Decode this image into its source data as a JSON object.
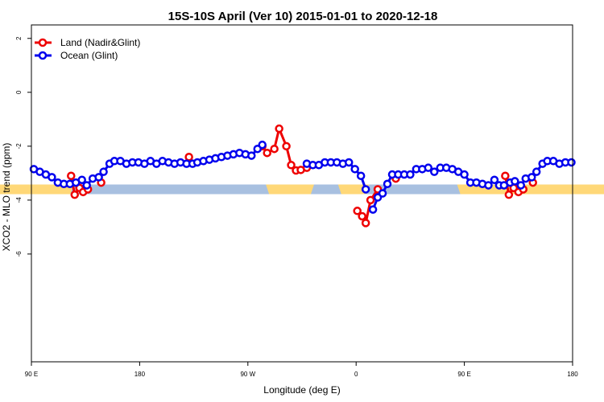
{
  "chart_data": {
    "type": "line",
    "title": "15S-10S April (Ver 10)   2015-01-01 to 2020-12-18",
    "xlabel": "Longitude (deg E)",
    "ylabel": "XCO2 - MLO trend (ppm)",
    "xlim": [
      90,
      540
    ],
    "ylim": [
      -10,
      2.5
    ],
    "x_ticks": [
      {
        "value": 90,
        "label": "90 E"
      },
      {
        "value": 180,
        "label": "180"
      },
      {
        "value": 270,
        "label": "90 W"
      },
      {
        "value": 360,
        "label": "0"
      },
      {
        "value": 450,
        "label": "90 E"
      },
      {
        "value": 540,
        "label": "180"
      }
    ],
    "y_ticks": [
      {
        "value": 2,
        "label": "2"
      },
      {
        "value": 0,
        "label": "0"
      },
      {
        "value": -2,
        "label": "-2"
      },
      {
        "value": -4,
        "label": "-4"
      },
      {
        "value": -6,
        "label": "-6"
      }
    ],
    "legend": {
      "position": "top-left"
    },
    "landmask": {
      "y": -3.6,
      "ocean_color": "#a8c0e0",
      "land_color": "#ffd878",
      "land_spans": [
        [
          285,
          325
        ],
        [
          345,
          371
        ],
        [
          444,
          640
        ],
        [
          23,
          125
        ]
      ]
    },
    "series": [
      {
        "name": "Land (Nadir&Glint)",
        "color": "#ee0000",
        "segments": [
          [
            [
              123,
              -3.1
            ],
            [
              126,
              -3.8
            ],
            [
              130,
              -3.55
            ],
            [
              133,
              -3.7
            ],
            [
              137,
              -3.6
            ]
          ],
          [
            [
              148,
              -3.35
            ]
          ],
          [
            [
              221,
              -2.4
            ]
          ],
          [
            [
              282,
              -2.0
            ],
            [
              286,
              -2.25
            ],
            [
              292,
              -2.1
            ],
            [
              296,
              -1.35
            ],
            [
              302,
              -2.0
            ],
            [
              306,
              -2.7
            ],
            [
              310,
              -2.9
            ],
            [
              314,
              -2.88
            ],
            [
              319,
              -2.8
            ]
          ],
          [
            [
              361,
              -4.4
            ],
            [
              365,
              -4.6
            ],
            [
              368,
              -4.85
            ],
            [
              372,
              -4.0
            ],
            [
              378,
              -3.6
            ]
          ],
          [
            [
              393,
              -3.2
            ]
          ],
          [
            [
              484,
              -3.1
            ],
            [
              487,
              -3.8
            ],
            [
              491,
              -3.55
            ],
            [
              495,
              -3.7
            ],
            [
              499,
              -3.6
            ]
          ],
          [
            [
              507,
              -3.35
            ]
          ]
        ]
      },
      {
        "name": "Ocean (Glint)",
        "color": "#0000ee",
        "segments": [
          [
            [
              92,
              -2.85
            ],
            [
              97,
              -2.95
            ],
            [
              102,
              -3.05
            ],
            [
              107,
              -3.15
            ],
            [
              112,
              -3.35
            ],
            [
              117,
              -3.4
            ],
            [
              122,
              -3.4
            ],
            [
              127,
              -3.35
            ],
            [
              132,
              -3.25
            ],
            [
              136,
              -3.45
            ],
            [
              141,
              -3.2
            ],
            [
              146,
              -3.15
            ],
            [
              150,
              -2.95
            ],
            [
              155,
              -2.65
            ],
            [
              159,
              -2.55
            ],
            [
              164,
              -2.55
            ],
            [
              169,
              -2.65
            ],
            [
              174,
              -2.6
            ],
            [
              179,
              -2.6
            ],
            [
              184,
              -2.65
            ],
            [
              189,
              -2.55
            ],
            [
              194,
              -2.65
            ],
            [
              199,
              -2.55
            ],
            [
              204,
              -2.6
            ],
            [
              209,
              -2.65
            ],
            [
              214,
              -2.6
            ],
            [
              219,
              -2.65
            ],
            [
              224,
              -2.65
            ],
            [
              228,
              -2.6
            ],
            [
              233,
              -2.55
            ],
            [
              238,
              -2.5
            ],
            [
              243,
              -2.45
            ],
            [
              248,
              -2.4
            ],
            [
              253,
              -2.35
            ],
            [
              258,
              -2.3
            ],
            [
              263,
              -2.25
            ],
            [
              268,
              -2.3
            ],
            [
              273,
              -2.35
            ],
            [
              278,
              -2.1
            ],
            [
              282,
              -1.95
            ]
          ],
          [
            [
              319,
              -2.65
            ],
            [
              324,
              -2.7
            ],
            [
              329,
              -2.7
            ],
            [
              334,
              -2.6
            ],
            [
              339,
              -2.6
            ],
            [
              344,
              -2.6
            ],
            [
              349,
              -2.65
            ],
            [
              354,
              -2.6
            ],
            [
              359,
              -2.85
            ],
            [
              364,
              -3.1
            ],
            [
              368,
              -3.6
            ]
          ],
          [
            [
              374,
              -4.35
            ],
            [
              378,
              -3.9
            ],
            [
              382,
              -3.75
            ],
            [
              386,
              -3.4
            ],
            [
              390,
              -3.05
            ],
            [
              395,
              -3.05
            ],
            [
              400,
              -3.05
            ],
            [
              405,
              -3.05
            ],
            [
              410,
              -2.85
            ],
            [
              415,
              -2.85
            ],
            [
              420,
              -2.8
            ],
            [
              425,
              -2.95
            ],
            [
              430,
              -2.8
            ],
            [
              435,
              -2.8
            ],
            [
              440,
              -2.85
            ],
            [
              445,
              -2.95
            ],
            [
              450,
              -3.05
            ],
            [
              455,
              -3.35
            ],
            [
              460,
              -3.35
            ],
            [
              465,
              -3.4
            ],
            [
              470,
              -3.45
            ],
            [
              475,
              -3.25
            ],
            [
              479,
              -3.45
            ],
            [
              483,
              -3.45
            ],
            [
              488,
              -3.35
            ],
            [
              492,
              -3.3
            ],
            [
              497,
              -3.45
            ],
            [
              501,
              -3.2
            ],
            [
              506,
              -3.15
            ],
            [
              510,
              -2.95
            ],
            [
              515,
              -2.65
            ],
            [
              519,
              -2.55
            ],
            [
              524,
              -2.55
            ],
            [
              529,
              -2.65
            ],
            [
              534,
              -2.6
            ],
            [
              539,
              -2.6
            ]
          ]
        ]
      }
    ]
  }
}
